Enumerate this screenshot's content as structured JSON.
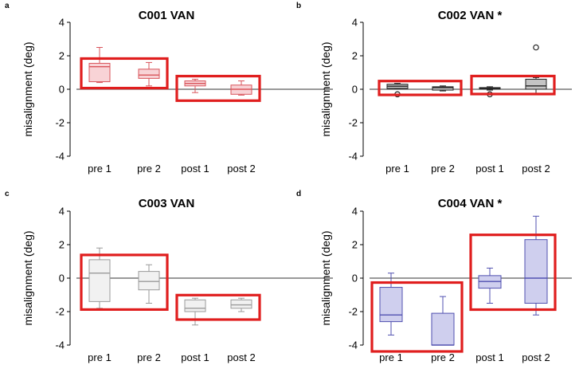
{
  "chart_data": [
    {
      "type": "box",
      "panel_label": "a",
      "title": "C001 VAN",
      "ylabel": "misalignment (deg)",
      "ylim": [
        -4,
        4
      ],
      "yticks": [
        "4",
        "2",
        "0",
        "-2",
        "-4"
      ],
      "categories": [
        "pre 1",
        "pre 2",
        "post 1",
        "post 2"
      ],
      "color": "#d9545b",
      "fill": "#f8d3d6",
      "boxes": [
        {
          "min": 0.4,
          "q1": 0.45,
          "median": 1.35,
          "q3": 1.55,
          "max": 2.5,
          "outliers": []
        },
        {
          "min": 0.2,
          "q1": 0.65,
          "median": 0.85,
          "q3": 1.2,
          "max": 1.6,
          "outliers": []
        },
        {
          "min": -0.2,
          "q1": 0.2,
          "median": 0.35,
          "q3": 0.5,
          "max": 0.6,
          "outliers": []
        },
        {
          "min": -0.35,
          "q1": -0.3,
          "median": 0.0,
          "q3": 0.25,
          "max": 0.5,
          "outliers": []
        }
      ],
      "highlights": [
        [
          0,
          1
        ],
        [
          2,
          3
        ]
      ]
    },
    {
      "type": "box",
      "panel_label": "b",
      "title": "C002 VAN *",
      "ylabel": "misalignment (deg)",
      "ylim": [
        -4,
        4
      ],
      "yticks": [
        "4",
        "2",
        "0",
        "-2",
        "-4"
      ],
      "categories": [
        "pre 1",
        "pre 2",
        "post 1",
        "post 2"
      ],
      "color": "#222222",
      "fill": "#c4c4c4",
      "boxes": [
        {
          "min": 0.05,
          "q1": 0.05,
          "median": 0.18,
          "q3": 0.3,
          "max": 0.35,
          "outliers": [
            -0.3
          ]
        },
        {
          "min": -0.1,
          "q1": -0.05,
          "median": 0.1,
          "q3": 0.15,
          "max": 0.2,
          "outliers": []
        },
        {
          "min": -0.05,
          "q1": 0.0,
          "median": 0.05,
          "q3": 0.1,
          "max": 0.15,
          "outliers": [
            -0.3
          ]
        },
        {
          "min": -0.3,
          "q1": 0.0,
          "median": 0.2,
          "q3": 0.6,
          "max": 0.7,
          "outliers": [
            2.5
          ]
        }
      ],
      "highlights": [
        [
          0,
          1
        ],
        [
          2,
          3
        ]
      ]
    },
    {
      "type": "box",
      "panel_label": "c",
      "title": "C003 VAN",
      "ylabel": "misalignment (deg)",
      "ylim": [
        -4,
        4
      ],
      "yticks": [
        "4",
        "2",
        "0",
        "-2",
        "-4"
      ],
      "categories": [
        "pre 1",
        "pre 2",
        "post 1",
        "post 2"
      ],
      "color": "#9a9a9a",
      "fill": "#f1f1f1",
      "boxes": [
        {
          "min": -1.8,
          "q1": -1.4,
          "median": 0.3,
          "q3": 1.1,
          "max": 1.8,
          "outliers": []
        },
        {
          "min": -1.5,
          "q1": -0.7,
          "median": -0.2,
          "q3": 0.4,
          "max": 0.8,
          "outliers": []
        },
        {
          "min": -2.8,
          "q1": -2.0,
          "median": -1.8,
          "q3": -1.3,
          "max": -1.2,
          "outliers": []
        },
        {
          "min": -2.0,
          "q1": -1.8,
          "median": -1.6,
          "q3": -1.3,
          "max": -1.2,
          "outliers": []
        }
      ],
      "highlights": [
        [
          0,
          1
        ],
        [
          2,
          3
        ]
      ]
    },
    {
      "type": "box",
      "panel_label": "d",
      "title": "C004 VAN *",
      "ylabel": "misalignment (deg)",
      "ylim": [
        -4,
        4
      ],
      "yticks": [
        "4",
        "2",
        "0",
        "-2",
        "-4"
      ],
      "categories": [
        "pre 1",
        "pre 2",
        "post 1",
        "post 2"
      ],
      "color": "#5050b0",
      "fill": "#cfcfee",
      "boxes": [
        {
          "min": -3.4,
          "q1": -2.6,
          "median": -2.2,
          "q3": -0.55,
          "max": 0.3,
          "outliers": []
        },
        {
          "min": -4.0,
          "q1": -4.0,
          "median": -4.0,
          "q3": -2.1,
          "max": -1.1,
          "outliers": []
        },
        {
          "min": -1.5,
          "q1": -0.6,
          "median": -0.2,
          "q3": 0.15,
          "max": 0.6,
          "outliers": []
        },
        {
          "min": -2.2,
          "q1": -1.5,
          "median": 0.0,
          "q3": 2.3,
          "max": 3.7,
          "outliers": []
        }
      ],
      "highlights": [
        [
          0,
          1
        ],
        [
          2,
          3
        ]
      ]
    }
  ]
}
